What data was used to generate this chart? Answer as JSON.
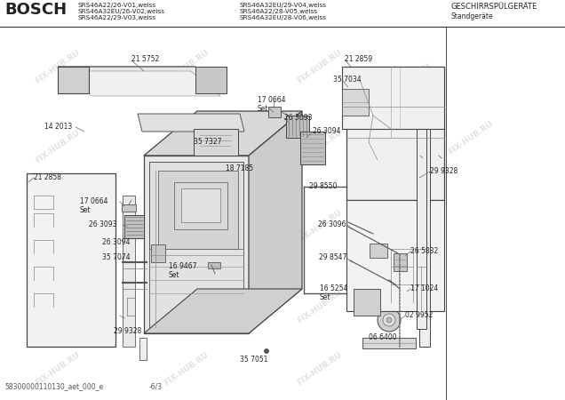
{
  "title_brand": "BOSCH",
  "model_lines_left": [
    "SRS46A22/26-V01,weiss",
    "SRS46A32EU/26-V02,weiss",
    "SRS46A22/29-V03,weiss"
  ],
  "model_lines_right": [
    "SRS46A32EU/29-V04,weiss",
    "SRS46A22/28-V05,weiss",
    "SRS46A32EU/28-V06,weiss"
  ],
  "title_right": "GESCHIRRSPÜLGERÄTE",
  "subtitle_right": "Standgeräte",
  "footer_left": "58300000110130_aet_000_e",
  "footer_right": "-6/3",
  "watermark": "FIX-HUB.RU",
  "bg_color": "#ffffff",
  "line_color": "#333333",
  "text_color": "#222222"
}
